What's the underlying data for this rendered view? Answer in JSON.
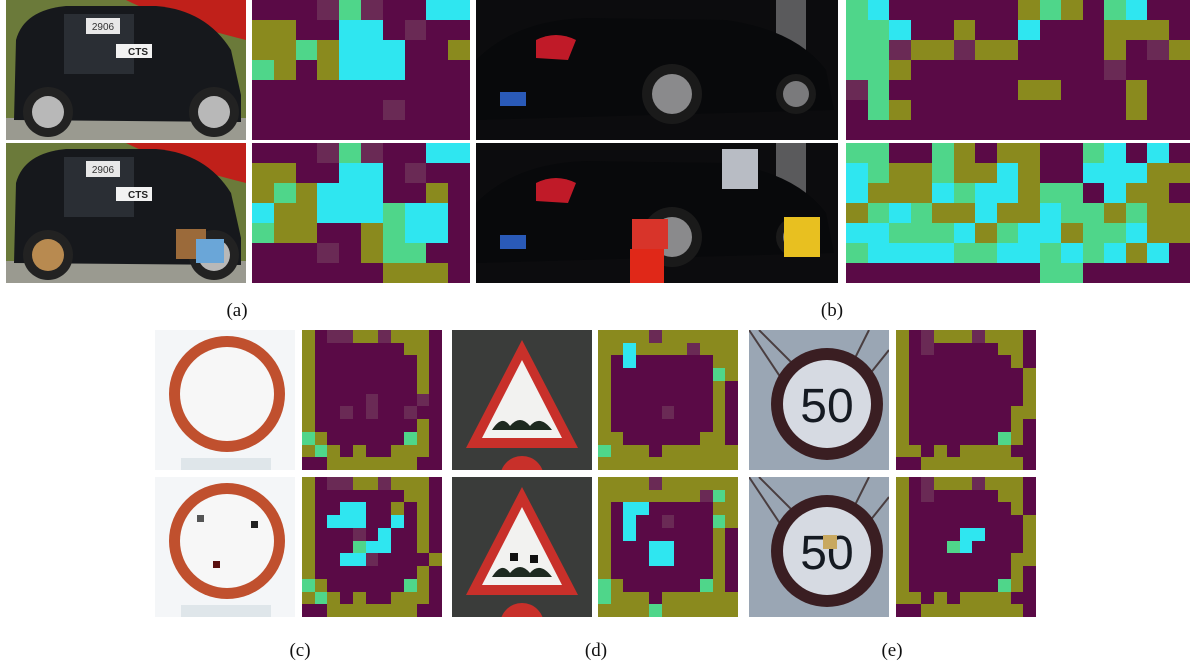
{
  "figure": {
    "captions": {
      "a": "(a)",
      "b": "(b)",
      "c": "(c)",
      "d": "(d)",
      "e": "(e)"
    }
  },
  "palette": {
    "background": "#5a0a46",
    "low": "#6a2a55",
    "mid": "#8a8a1e",
    "mid_high": "#4fd68a",
    "high": "#2fe6f0"
  },
  "car_a": {
    "sticker_number": "2906",
    "logo_text": "CTS"
  },
  "sign_e": {
    "speed_limit": "50"
  }
}
